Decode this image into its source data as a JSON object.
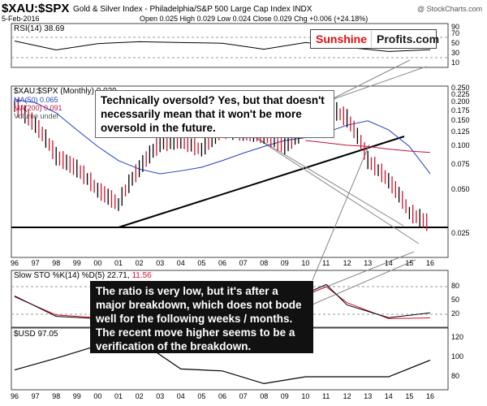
{
  "header": {
    "symbol": "$XAU:$SPX",
    "description": "Gold & Silver Index - Philadelphia/S&P 500 Large Cap Index  INDX",
    "date": "5-Feb-2016",
    "ohlc": "Open 0.025  High 0.029  Low 0.024  Close 0.029  Chg +0.006 (+24.18%)",
    "watermark": "@ StockCharts.com"
  },
  "brand": {
    "part1": "Sunshine",
    "part2": "Profits.com"
  },
  "rsi_panel": {
    "label": "RSI(14) 38.69",
    "ticks": [
      "90",
      "70",
      "50",
      "30",
      "10"
    ]
  },
  "main_panel": {
    "label": "$XAU:$SPX (Monthly) 0.029",
    "legend": [
      {
        "text": "MA(50) 0.065",
        "color": "#1f3fbf"
      },
      {
        "text": "MA(200) 0.091",
        "color": "#c0143c"
      },
      {
        "text": "Volume undef",
        "color": "#555555"
      }
    ],
    "y_ticks": [
      "0.250",
      "0.225",
      "0.200",
      "0.175",
      "0.150",
      "0.125",
      "0.100",
      "0.075",
      "0.050",
      "0.025"
    ]
  },
  "stoch_panel": {
    "label_prefix": "Slow STO %K(14) %D(5) ",
    "k_value": "22.71",
    "d_value": "11.56",
    "ticks": [
      "80",
      "50",
      "20"
    ]
  },
  "usd_panel": {
    "label": "$USD 97.05",
    "ticks": [
      "120",
      "100",
      "80"
    ]
  },
  "x_axis": [
    "96",
    "97",
    "98",
    "99",
    "00",
    "01",
    "02",
    "03",
    "04",
    "05",
    "06",
    "07",
    "08",
    "09",
    "10",
    "11",
    "12",
    "13",
    "14",
    "15",
    "16"
  ],
  "callouts": {
    "top": "Technically oversold? Yes, but that doesn't necessarily mean that it won't be more oversold in the future.",
    "bottom": "The ratio is very low, but it's after a major breakdown, which does not bode well for the following weeks / months. The recent move higher seems to be a verification of the breakdown."
  },
  "colors": {
    "ma50": "#1f3fbf",
    "ma200": "#c0143c",
    "up": "#000000",
    "down": "#d2102a",
    "stoch_k": "#000000",
    "stoch_d": "#d2102a"
  },
  "chart_data": [
    {
      "type": "line",
      "title": "RSI(14)",
      "x": [
        "96",
        "98",
        "00",
        "02",
        "04",
        "06",
        "08",
        "10",
        "12",
        "14",
        "16"
      ],
      "series": [
        {
          "name": "RSI(14)",
          "values": [
            62,
            38,
            55,
            60,
            58,
            56,
            40,
            58,
            45,
            34,
            38.69
          ]
        }
      ],
      "ylim": [
        0,
        100
      ]
    },
    {
      "type": "line",
      "title": "$XAU:$SPX (Monthly)",
      "x": [
        "96",
        "97",
        "98",
        "99",
        "00",
        "01",
        "02",
        "03",
        "04",
        "05",
        "06",
        "07",
        "08",
        "09",
        "10",
        "11",
        "12",
        "13",
        "14",
        "15",
        "16"
      ],
      "series": [
        {
          "name": "$XAU:$SPX",
          "values": [
            0.19,
            0.14,
            0.085,
            0.07,
            0.05,
            0.04,
            0.07,
            0.105,
            0.11,
            0.095,
            0.13,
            0.125,
            0.12,
            0.1,
            0.13,
            0.19,
            0.155,
            0.08,
            0.058,
            0.035,
            0.029
          ]
        },
        {
          "name": "MA(50)",
          "values": [
            0.21,
            0.2,
            0.17,
            0.13,
            0.1,
            0.08,
            0.07,
            0.065,
            0.068,
            0.072,
            0.08,
            0.09,
            0.1,
            0.11,
            0.115,
            0.125,
            0.14,
            0.15,
            0.13,
            0.1,
            0.065
          ]
        },
        {
          "name": "MA(200)",
          "values": [
            null,
            null,
            null,
            null,
            null,
            null,
            null,
            null,
            null,
            null,
            null,
            null,
            null,
            null,
            0.11,
            0.106,
            0.102,
            0.1,
            0.096,
            0.093,
            0.091
          ]
        }
      ],
      "ylim": [
        0.015,
        0.25
      ]
    },
    {
      "type": "line",
      "title": "Slow STO %K(14) %D(5)",
      "x": [
        "96",
        "98",
        "00",
        "02",
        "04",
        "06",
        "08",
        "10",
        "11",
        "12",
        "14",
        "16"
      ],
      "series": [
        {
          "name": "%K",
          "values": [
            60,
            15,
            10,
            75,
            60,
            70,
            20,
            65,
            85,
            40,
            12,
            22.71
          ]
        },
        {
          "name": "%D",
          "values": [
            58,
            18,
            12,
            70,
            62,
            68,
            25,
            62,
            80,
            45,
            10,
            11.56
          ]
        }
      ],
      "ylim": [
        0,
        100
      ]
    },
    {
      "type": "line",
      "title": "$USD",
      "x": [
        "96",
        "98",
        "00",
        "02",
        "04",
        "06",
        "08",
        "10",
        "12",
        "14",
        "16"
      ],
      "series": [
        {
          "name": "$USD",
          "values": [
            87,
            99,
            112,
            117,
            88,
            86,
            73,
            80,
            80,
            80,
            97.05
          ]
        }
      ],
      "ylim": [
        70,
        125
      ]
    }
  ]
}
